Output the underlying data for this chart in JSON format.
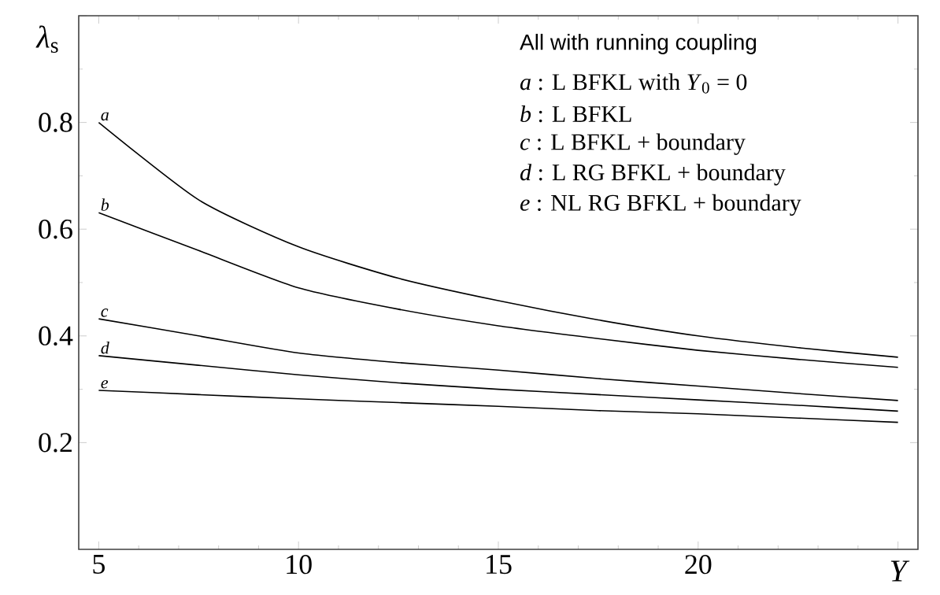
{
  "chart_data": {
    "type": "line",
    "xlabel": "Y",
    "ylabel": "*λ*$_{s}$",
    "x": [
      5,
      7.5,
      10,
      12.5,
      15,
      17.5,
      20,
      22.5,
      25
    ],
    "xlim": [
      4.5,
      25.5
    ],
    "ylim": [
      0,
      1
    ],
    "xticks": [
      5,
      10,
      15,
      20,
      {
        "value": 25,
        "label": null
      }
    ],
    "yticks": [
      0.2,
      0.4,
      0.6,
      0.8,
      {
        "value": 1,
        "label": null
      }
    ],
    "line_style": "solid",
    "series": [
      {
        "name": "a",
        "color": "#000000",
        "values": [
          0.8,
          0.655,
          0.567,
          0.508,
          0.466,
          0.43,
          0.4,
          0.378,
          0.36
        ]
      },
      {
        "name": "b",
        "color": "#000000",
        "values": [
          0.631,
          0.56,
          0.49,
          0.45,
          0.419,
          0.395,
          0.373,
          0.356,
          0.341
        ]
      },
      {
        "name": "c",
        "color": "#000000",
        "values": [
          0.432,
          0.4,
          0.368,
          0.35,
          0.336,
          0.32,
          0.306,
          0.292,
          0.279
        ]
      },
      {
        "name": "d",
        "color": "#000000",
        "values": [
          0.363,
          0.345,
          0.327,
          0.312,
          0.3,
          0.29,
          0.28,
          0.27,
          0.259
        ]
      },
      {
        "name": "e",
        "color": "#000000",
        "values": [
          0.298,
          0.29,
          0.282,
          0.275,
          0.268,
          0.26,
          0.254,
          0.246,
          0.238
        ]
      }
    ],
    "annotations": [
      "All with running coupling",
      "*a* : L BFKL with *Y*$_{0}$ = 0",
      "*b* : L BFKL",
      "*c* : L BFKL + boundary",
      "*d* : L RG BFKL + boundary",
      "*e* : NL RG BFKL + boundary"
    ]
  }
}
